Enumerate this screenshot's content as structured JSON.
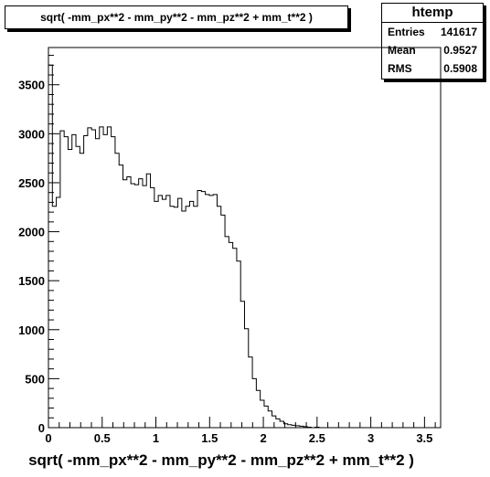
{
  "plot_title": "sqrt( -mm_px**2 - mm_py**2 - mm_pz**2 + mm_t**2 )",
  "stats": {
    "name": "htemp",
    "rows": [
      {
        "label": "Entries",
        "value": "141617"
      },
      {
        "label": "Mean",
        "value": "0.9527"
      },
      {
        "label": "RMS",
        "value": "0.5908"
      }
    ]
  },
  "chart_data": {
    "type": "histogram",
    "title": "sqrt( -mm_px**2 - mm_py**2 - mm_pz**2 + mm_t**2 )",
    "xlabel": "sqrt( -mm_px**2 - mm_py**2 - mm_pz**2 + mm_t**2 )",
    "ylabel": "",
    "xlim": [
      0,
      3.65
    ],
    "ylim": [
      0,
      3880
    ],
    "xticks": [
      "0",
      "0.5",
      "1",
      "1.5",
      "2",
      "2.5",
      "3",
      "3.5"
    ],
    "xtick_values": [
      0,
      0.5,
      1,
      1.5,
      2,
      2.5,
      3,
      3.5
    ],
    "yticks": [
      "0",
      "500",
      "1000",
      "1500",
      "2000",
      "2500",
      "3000",
      "3500"
    ],
    "ytick_values": [
      0,
      500,
      1000,
      1500,
      2000,
      2500,
      3000,
      3500
    ],
    "bin_width": 0.0365,
    "values": [
      3700,
      2260,
      2350,
      3030,
      2970,
      2840,
      2990,
      2870,
      2800,
      2980,
      3060,
      3040,
      2950,
      3070,
      2990,
      3070,
      2970,
      2800,
      2680,
      2530,
      2560,
      2490,
      2480,
      2540,
      2470,
      2590,
      2450,
      2310,
      2370,
      2330,
      2370,
      2260,
      2250,
      2340,
      2210,
      2260,
      2310,
      2260,
      2420,
      2410,
      2380,
      2370,
      2380,
      2260,
      2170,
      1950,
      1890,
      1830,
      1700,
      1290,
      1010,
      720,
      500,
      380,
      280,
      220,
      170,
      120,
      90,
      65,
      40,
      30,
      25,
      20,
      15,
      10,
      5,
      0,
      5,
      0,
      0,
      0,
      0,
      0,
      0,
      0,
      0,
      0,
      0,
      0,
      0,
      0,
      0,
      0,
      0,
      0,
      0,
      0,
      0,
      0,
      0,
      0,
      0,
      0,
      0,
      0,
      0,
      0,
      0,
      0
    ],
    "grid": false,
    "line_color": "#000000",
    "background": "#ffffff"
  }
}
